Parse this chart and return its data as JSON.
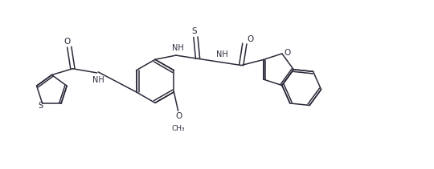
{
  "background_color": "#ffffff",
  "line_color": "#2a2a3a",
  "figsize": [
    5.4,
    2.11
  ],
  "dpi": 100,
  "xlim": [
    0,
    10
  ],
  "ylim": [
    0,
    4
  ]
}
